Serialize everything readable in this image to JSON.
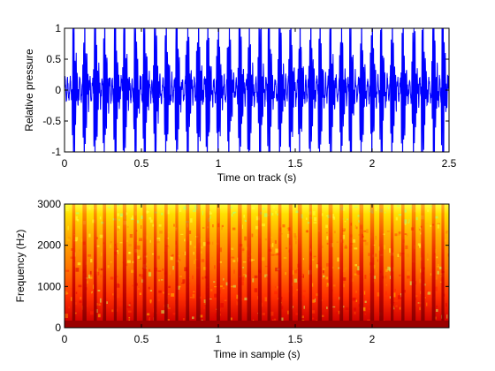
{
  "chart_data": [
    {
      "type": "line",
      "ylabel": "Relative pressure",
      "xlabel": "Time on track (s)",
      "xlim": [
        0,
        2.5
      ],
      "ylim": [
        -1,
        1
      ],
      "xticks": [
        0,
        0.5,
        1,
        1.5,
        2,
        2.5
      ],
      "xtick_labels": [
        "0",
        "0.5",
        "1",
        "1.5",
        "2",
        "2.5"
      ],
      "yticks": [
        -1,
        -0.5,
        0,
        0.5,
        1
      ],
      "ytick_labels": [
        "-1",
        "-0.5",
        "0",
        "0.5",
        "1"
      ],
      "grid": false,
      "line_color": "#0000ff",
      "series": [
        {
          "pulse_times": [
            0.06,
            0.13,
            0.2,
            0.26,
            0.33,
            0.39,
            0.46,
            0.52,
            0.59,
            0.66,
            0.73,
            0.8,
            0.87,
            0.93,
            1.0,
            1.07,
            1.14,
            1.2,
            1.27,
            1.33,
            1.4,
            1.47,
            1.53,
            1.6,
            1.66,
            1.73,
            1.8,
            1.86,
            1.93,
            2.0,
            2.06,
            2.13,
            2.2,
            2.27,
            2.33,
            2.4,
            2.46
          ],
          "baseline_amplitude": 0.3,
          "peak_amplitude": 1.0
        }
      ]
    },
    {
      "type": "heatmap",
      "ylabel": "Frequency (Hz)",
      "xlabel": "Time in sample (s)",
      "xlim": [
        0,
        2.5
      ],
      "ylim": [
        0,
        3000
      ],
      "xticks": [
        0,
        0.5,
        1,
        1.5,
        2
      ],
      "xtick_labels": [
        "0",
        "0.5",
        "1",
        "1.5",
        "2"
      ],
      "yticks": [
        0,
        1000,
        2000,
        3000
      ],
      "ytick_labels": [
        "0",
        "1000",
        "2000",
        "3000"
      ],
      "grid": false,
      "colormap": [
        "#8b0000",
        "#ff0000",
        "#ff8c00",
        "#ffff00",
        "#7fff7f"
      ],
      "band_times": [
        0.06,
        0.13,
        0.2,
        0.26,
        0.33,
        0.39,
        0.46,
        0.52,
        0.59,
        0.66,
        0.73,
        0.8,
        0.87,
        0.93,
        1.0,
        1.07,
        1.14,
        1.2,
        1.27,
        1.33,
        1.4,
        1.47,
        1.53,
        1.6,
        1.66,
        1.73,
        1.8,
        1.86,
        1.93,
        2.0,
        2.06,
        2.13,
        2.2,
        2.27,
        2.33,
        2.4,
        2.46
      ]
    }
  ]
}
